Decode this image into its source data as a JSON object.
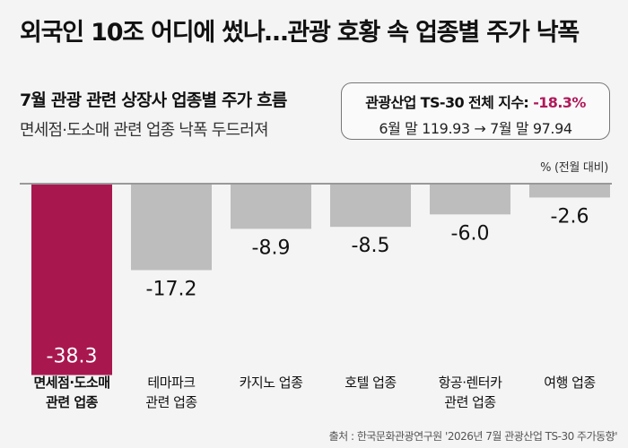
{
  "headline": "외국인 10조 어디에 썼나…관광 호황 속 업종별 주가 낙폭",
  "subtitle": "7월 관광 관련 상장사 업종별 주가 흐름",
  "subtitle2": "면세점·도소매 관련 업종 낙폭 두드러져",
  "index_box": {
    "label": "관광산업 TS-30 전체 지수:",
    "value": "-18.3%",
    "detail": "6월 말 119.93 → 7월 말 97.94"
  },
  "source": "출처 : 한국문화관광연구원 '2026년 7월 관광산업 TS-30 주가동향'",
  "chart_data": {
    "type": "bar",
    "unit_label": "% (전월 대비)",
    "categories": [
      [
        "면세점·도소매",
        "관련 업종"
      ],
      [
        "테마파크",
        "관련 업종"
      ],
      [
        "카지노 업종"
      ],
      [
        "호텔 업종"
      ],
      [
        "항공·렌터카",
        "관련 업종"
      ],
      [
        "여행 업종"
      ]
    ],
    "values": [
      -38.3,
      -17.2,
      -8.9,
      -8.5,
      -6.0,
      -2.6
    ],
    "value_labels": [
      "-38.3",
      "-17.2",
      "-8.9",
      "-8.5",
      "-6.0",
      "-2.6"
    ],
    "ylim": [
      -40,
      0
    ],
    "highlight_index": 0,
    "colors": {
      "highlight": "#a8184f",
      "default": "#bdbdbd",
      "highlight_label": "#ffffff",
      "default_label": "#111111"
    }
  }
}
